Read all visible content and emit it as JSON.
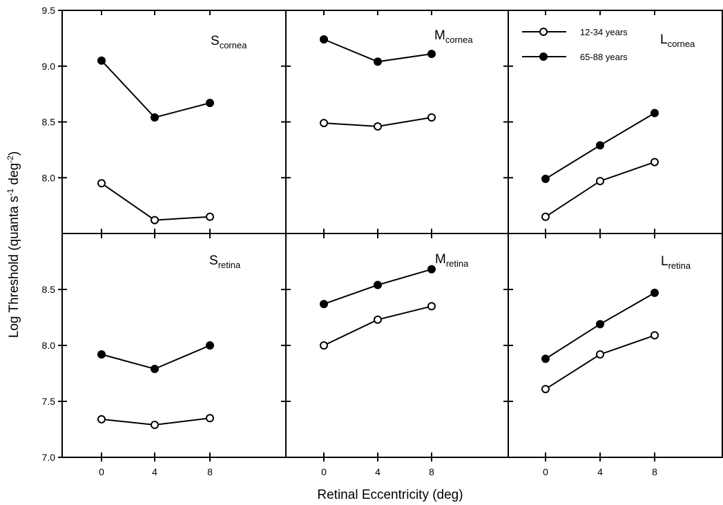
{
  "chart_data": {
    "type": "line",
    "xlabel": "Retinal Eccentricity  (deg)",
    "ylabel_main": "Log Threshold  (quanta  s",
    "ylabel_sup1": "-1",
    "ylabel_mid": "  deg",
    "ylabel_sup2": "-2",
    "ylabel_end": ")",
    "x": [
      0,
      4,
      8
    ],
    "x_tick_labels": [
      "0",
      "4",
      "8"
    ],
    "top_y_ticks": [
      {
        "value": 9.5,
        "label": "9.5"
      },
      {
        "value": 9.0,
        "label": "9.0"
      },
      {
        "value": 8.5,
        "label": "8.5"
      },
      {
        "value": 8.0,
        "label": "8.0"
      }
    ],
    "bottom_y_ticks": [
      {
        "value": 8.5,
        "label": "8.5"
      },
      {
        "value": 8.0,
        "label": "8.0"
      },
      {
        "value": 7.5,
        "label": "7.5"
      },
      {
        "value": 7.0,
        "label": "7.0"
      }
    ],
    "top_ylim": [
      7.5,
      9.5
    ],
    "bottom_ylim": [
      7.0,
      9.0
    ],
    "legend": {
      "placement": "top-right",
      "entries": [
        {
          "label": "12-34 years",
          "marker": "open-circle"
        },
        {
          "label": "65-88 years",
          "marker": "filled-circle"
        }
      ]
    },
    "panels": [
      {
        "id": "s-cornea",
        "row": "top",
        "col": 0,
        "label_main": "S",
        "label_sub": "cornea",
        "series": [
          {
            "marker": "open-circle",
            "values": [
              7.95,
              7.62,
              7.65
            ]
          },
          {
            "marker": "filled-circle",
            "values": [
              9.05,
              8.54,
              8.67
            ]
          }
        ]
      },
      {
        "id": "m-cornea",
        "row": "top",
        "col": 1,
        "label_main": "M",
        "label_sub": "cornea",
        "series": [
          {
            "marker": "open-circle",
            "values": [
              8.49,
              8.46,
              8.54
            ]
          },
          {
            "marker": "filled-circle",
            "values": [
              9.24,
              9.04,
              9.11
            ]
          }
        ]
      },
      {
        "id": "l-cornea",
        "row": "top",
        "col": 2,
        "label_main": "L",
        "label_sub": "cornea",
        "series": [
          {
            "marker": "open-circle",
            "values": [
              7.65,
              7.97,
              8.14
            ]
          },
          {
            "marker": "filled-circle",
            "values": [
              7.99,
              8.29,
              8.58
            ]
          }
        ]
      },
      {
        "id": "s-retina",
        "row": "bottom",
        "col": 0,
        "label_main": "S",
        "label_sub": "retina",
        "series": [
          {
            "marker": "open-circle",
            "values": [
              7.34,
              7.29,
              7.35
            ]
          },
          {
            "marker": "filled-circle",
            "values": [
              7.92,
              7.79,
              8.0
            ]
          }
        ]
      },
      {
        "id": "m-retina",
        "row": "bottom",
        "col": 1,
        "label_main": "M",
        "label_sub": "retina",
        "series": [
          {
            "marker": "open-circle",
            "values": [
              8.0,
              8.23,
              8.35
            ]
          },
          {
            "marker": "filled-circle",
            "values": [
              8.37,
              8.54,
              8.68
            ]
          }
        ]
      },
      {
        "id": "l-retina",
        "row": "bottom",
        "col": 2,
        "label_main": "L",
        "label_sub": "retina",
        "series": [
          {
            "marker": "open-circle",
            "values": [
              7.61,
              7.92,
              8.09
            ]
          },
          {
            "marker": "filled-circle",
            "values": [
              7.88,
              8.19,
              8.47
            ]
          }
        ]
      }
    ]
  }
}
